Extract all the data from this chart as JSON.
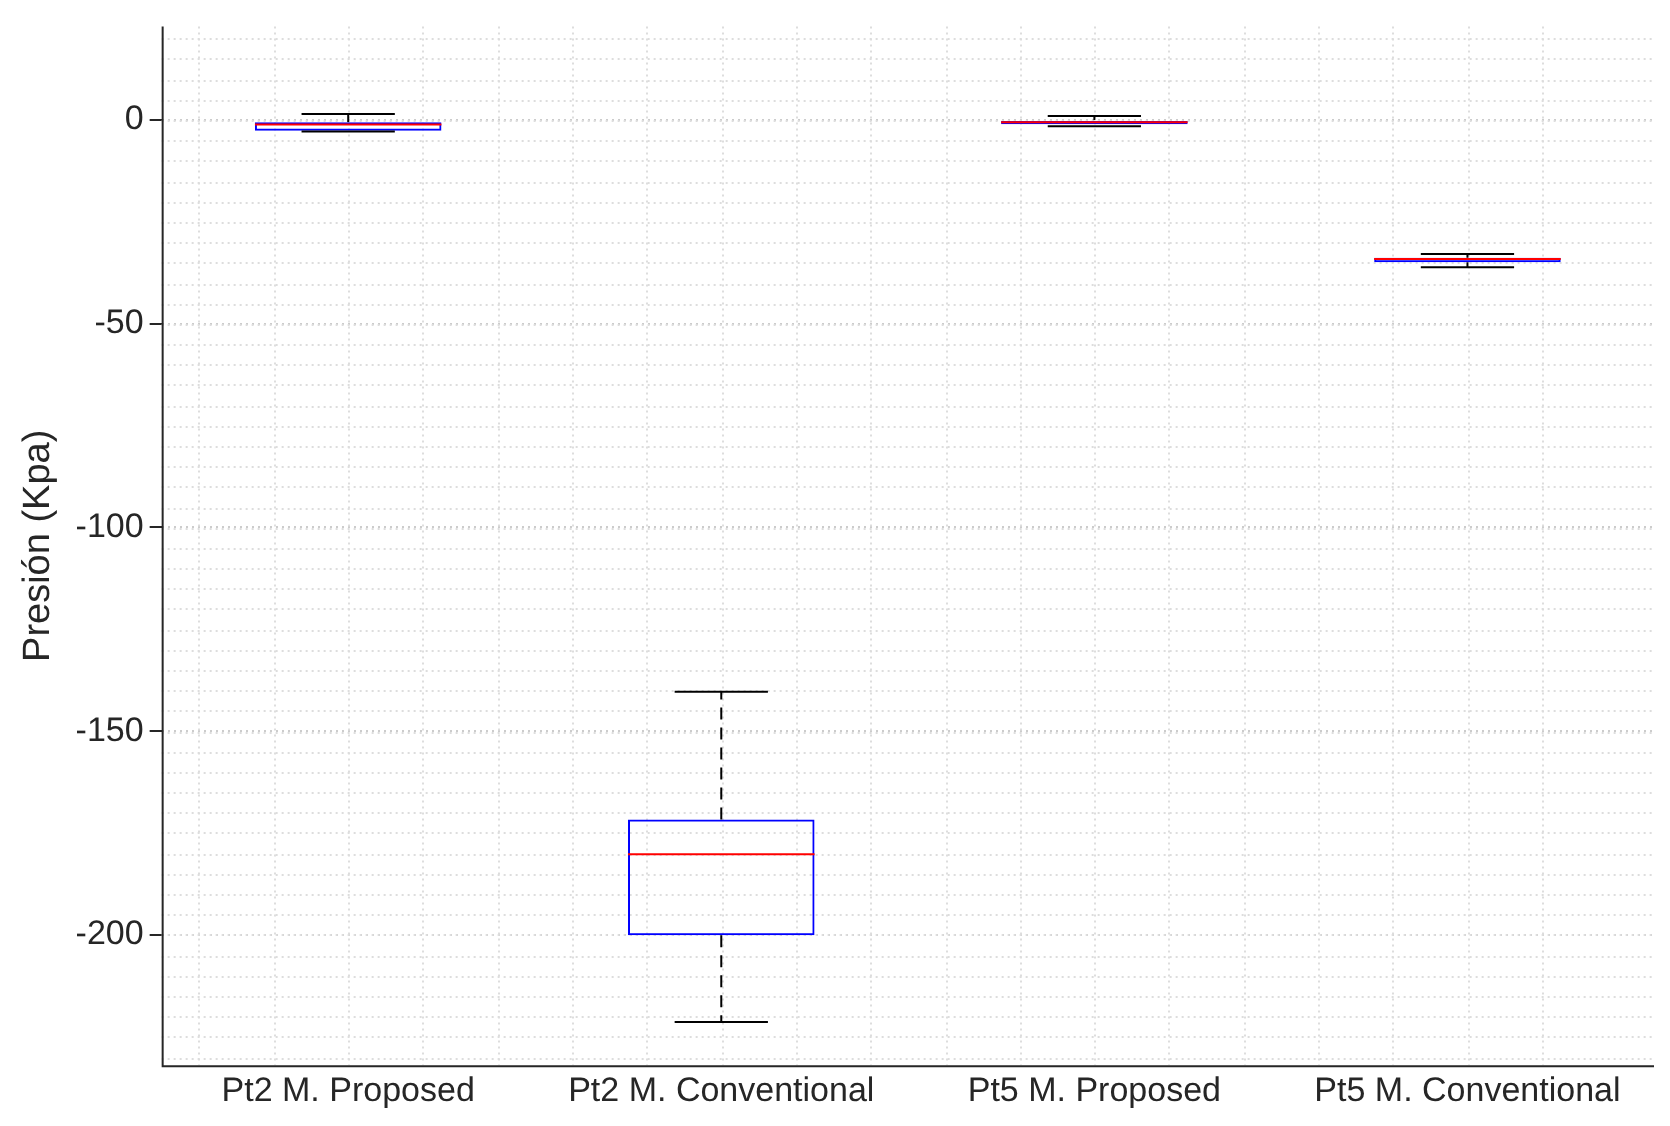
{
  "chart_data": {
    "type": "box",
    "ylabel": "Presión (Kpa)",
    "categories": [
      "Pt2 M. Proposed",
      "Pt2 M. Conventional",
      "Pt5 M. Proposed",
      "Pt5 M. Conventional"
    ],
    "series": [
      {
        "color": "#0000ff",
        "boxes": [
          {
            "low": -2.8,
            "q1": -2.6,
            "median": -1.1,
            "q3": -0.5,
            "high": 1.5
          },
          {
            "low": -221.4,
            "q1": -200.1,
            "median": -180.2,
            "q3": -171.7,
            "high": -140.3
          },
          {
            "low": -1.5,
            "q1": -1,
            "median": -0.5,
            "q3": 0,
            "high": 1
          },
          {
            "low": -36.1,
            "q1": -34.9,
            "median": -34.1,
            "q3": -33.8,
            "high": -32.9
          }
        ]
      }
    ],
    "ylim": [
      -232,
      23
    ],
    "yticks": [
      0,
      -50,
      -100,
      -150,
      -200
    ],
    "grid": true,
    "legend": false
  }
}
